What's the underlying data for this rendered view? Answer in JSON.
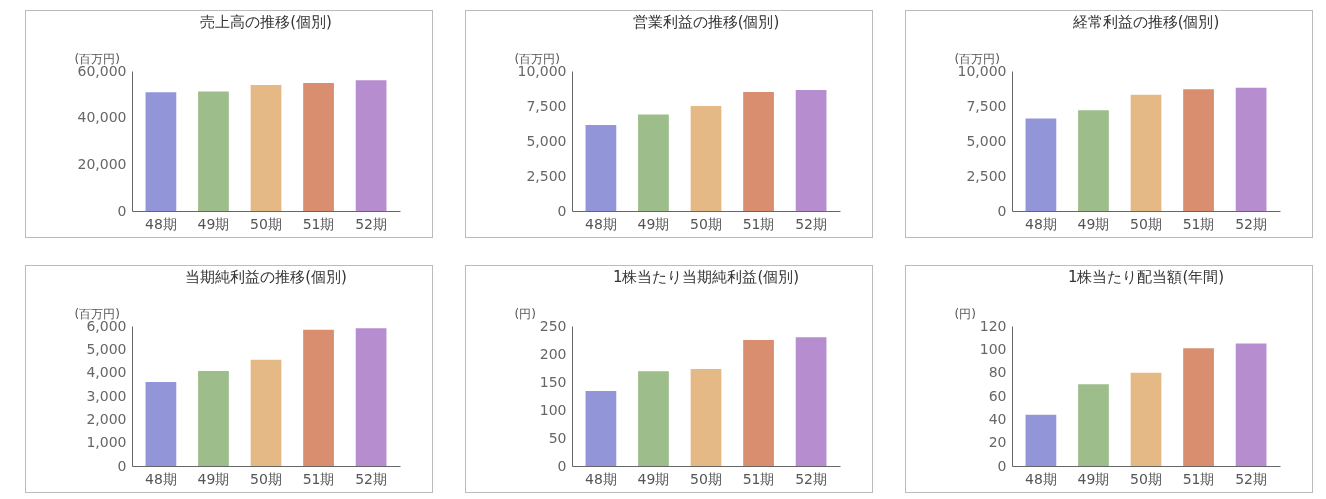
{
  "chart_data": [
    {
      "type": "bar",
      "title": "売上高の推移(個別)",
      "ylabel": "(百万円)",
      "categories": [
        "48期",
        "49期",
        "50期",
        "51期",
        "52期"
      ],
      "values": [
        50900,
        51200,
        54000,
        54900,
        56000
      ],
      "colors": [
        "#9296d8",
        "#9dbd8b",
        "#e5b985",
        "#d98e70",
        "#b68dcf"
      ],
      "ylim": [
        0,
        60000
      ],
      "yticks": [
        0,
        {
          "value": 20000,
          "label": "20,000"
        },
        {
          "value": 40000,
          "label": "40,000"
        },
        {
          "value": 60000,
          "label": "60,000"
        }
      ]
    },
    {
      "type": "bar",
      "title": "営業利益の推移(個別)",
      "ylabel": "(百万円)",
      "categories": [
        "48期",
        "49期",
        "50期",
        "51期",
        "52期"
      ],
      "values": [
        6150,
        6900,
        7500,
        8500,
        8650
      ],
      "colors": [
        "#9296d8",
        "#9dbd8b",
        "#e5b985",
        "#d98e70",
        "#b68dcf"
      ],
      "ylim": [
        0,
        10000
      ],
      "yticks": [
        0,
        {
          "value": 2500,
          "label": "2,500"
        },
        {
          "value": 5000,
          "label": "5,000"
        },
        {
          "value": 7500,
          "label": "7,500"
        },
        {
          "value": 10000,
          "label": "10,000"
        }
      ]
    },
    {
      "type": "bar",
      "title": "経常利益の推移(個別)",
      "ylabel": "(百万円)",
      "categories": [
        "48期",
        "49期",
        "50期",
        "51期",
        "52期"
      ],
      "values": [
        6600,
        7200,
        8300,
        8700,
        8800
      ],
      "colors": [
        "#9296d8",
        "#9dbd8b",
        "#e5b985",
        "#d98e70",
        "#b68dcf"
      ],
      "ylim": [
        0,
        10000
      ],
      "yticks": [
        0,
        {
          "value": 2500,
          "label": "2,500"
        },
        {
          "value": 5000,
          "label": "5,000"
        },
        {
          "value": 7500,
          "label": "7,500"
        },
        {
          "value": 10000,
          "label": "10,000"
        }
      ]
    },
    {
      "type": "bar",
      "title": "当期純利益の推移(個別)",
      "ylabel": "(百万円)",
      "categories": [
        "48期",
        "49期",
        "50期",
        "51期",
        "52期"
      ],
      "values": [
        3600,
        4070,
        4550,
        5840,
        5900
      ],
      "colors": [
        "#9296d8",
        "#9dbd8b",
        "#e5b985",
        "#d98e70",
        "#b68dcf"
      ],
      "ylim": [
        0,
        6000
      ],
      "yticks": [
        0,
        {
          "value": 1000,
          "label": "1,000"
        },
        {
          "value": 2000,
          "label": "2,000"
        },
        {
          "value": 3000,
          "label": "3,000"
        },
        {
          "value": 4000,
          "label": "4,000"
        },
        {
          "value": 5000,
          "label": "5,000"
        },
        {
          "value": 6000,
          "label": "6,000"
        }
      ]
    },
    {
      "type": "bar",
      "title": "1株当たり当期純利益(個別)",
      "ylabel": "(円)",
      "categories": [
        "48期",
        "49期",
        "50期",
        "51期",
        "52期"
      ],
      "values": [
        134,
        169,
        173,
        225,
        230
      ],
      "colors": [
        "#9296d8",
        "#9dbd8b",
        "#e5b985",
        "#d98e70",
        "#b68dcf"
      ],
      "ylim": [
        0,
        250
      ],
      "yticks": [
        0,
        50,
        100,
        150,
        200,
        250
      ]
    },
    {
      "type": "bar",
      "title": "1株当たり配当額(年間)",
      "ylabel": "(円)",
      "categories": [
        "48期",
        "49期",
        "50期",
        "51期",
        "52期"
      ],
      "values": [
        44,
        70,
        80,
        101,
        105
      ],
      "colors": [
        "#9296d8",
        "#9dbd8b",
        "#e5b985",
        "#d98e70",
        "#b68dcf"
      ],
      "ylim": [
        0,
        120
      ],
      "yticks": [
        0,
        20,
        40,
        60,
        80,
        100,
        120
      ]
    }
  ]
}
